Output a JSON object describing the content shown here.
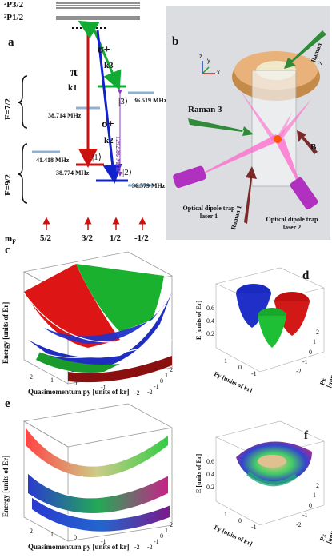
{
  "panel_a": {
    "letter": "a",
    "levels": {
      "p32": "²P3/2",
      "p12": "²P1/2"
    },
    "f72": "F=7/2",
    "f92": "F=9/2",
    "mf_label": "mF",
    "mf_values": [
      "5/2",
      "3/2",
      "1/2",
      "-1/2"
    ],
    "freqs": [
      "41.418 MHz",
      "38.714 MHz",
      "38.774 MHz",
      "36.519 MHz",
      "36.579 MHz"
    ],
    "vertical_freq": "1292.86 MHz",
    "beams": [
      {
        "pol": "π",
        "k": "k1"
      },
      {
        "pol": "σ+",
        "k": "k3"
      },
      {
        "pol": "σ+",
        "k": "k2"
      }
    ],
    "states": [
      "|1⟩",
      "|2⟩",
      "|3⟩"
    ]
  },
  "panel_b": {
    "letter": "b",
    "labels": [
      "Raman 2",
      "Raman 3",
      "Raman 1",
      "Optical dipole trap laser 1",
      "Optical dipole trap laser 2",
      "B"
    ],
    "axes": [
      "x",
      "y",
      "z"
    ]
  },
  "panel_c": {
    "letter": "c",
    "ylabel": "Energy [units of Er]",
    "xlabel": "Quasimomentum py [units of kr]",
    "xticks": [
      "2",
      "1",
      "0",
      "-1",
      "-2"
    ],
    "side_ticks": [
      "2",
      "1",
      "0",
      "-1",
      "-2"
    ]
  },
  "panel_d": {
    "letter": "d",
    "ylabel": "E [units of Er]",
    "yticks": [
      "0.6",
      "0.4",
      "0.2"
    ],
    "xlabel": "Py [units of kr]",
    "zlabel": "Px [units of kr]",
    "xticks": [
      "1",
      "0",
      "-1"
    ],
    "zticks": [
      "2",
      "1",
      "0",
      "-1",
      "-2"
    ]
  },
  "panel_e": {
    "letter": "e",
    "ylabel": "Energy [units of Er]",
    "xlabel": "Quasimomentum py [units of kr]",
    "xticks": [
      "2",
      "1",
      "0",
      "-1",
      "-2"
    ],
    "side_ticks": [
      "2",
      "1",
      "0",
      "-1",
      "-2"
    ]
  },
  "panel_f": {
    "letter": "f",
    "ylabel": "E [units of Er]",
    "yticks": [
      "0.6",
      "0.4",
      "0.2"
    ],
    "xlabel": "Py [units of kr]",
    "zlabel": "Px [units of kr]",
    "xticks": [
      "1",
      "0",
      "-1"
    ],
    "zticks": [
      "2",
      "1",
      "0",
      "-1",
      "-2"
    ]
  },
  "colors": {
    "red": "#cc1111",
    "green": "#11aa33",
    "blue": "#1122cc",
    "level": "#8fb0d0"
  }
}
